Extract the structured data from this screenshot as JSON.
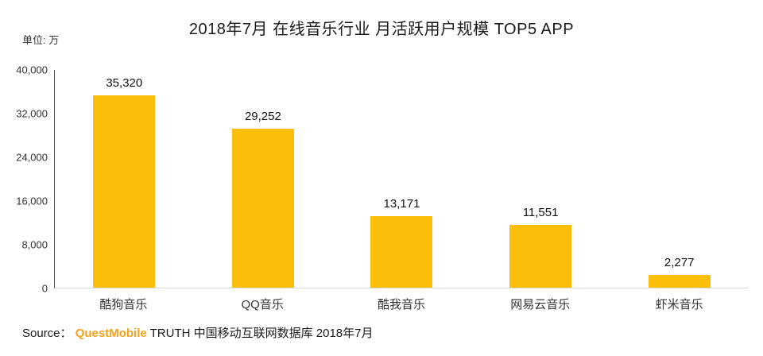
{
  "title": "2018年7月 在线音乐行业 月活跃用户规模 TOP5 APP",
  "unit_label": "单位: 万",
  "source": {
    "prefix": "Source：",
    "brand": "QuestMobile",
    "rest": " TRUTH 中国移动互联网数据库 2018年7月"
  },
  "colors": {
    "bar": "#FBBE0B",
    "brand": "#F7A21B",
    "axis": "#595959"
  },
  "chart_data": {
    "type": "bar",
    "title": "2018年7月 在线音乐行业 月活跃用户规模 TOP5 APP",
    "xlabel": "",
    "ylabel": "单位: 万",
    "categories": [
      "酷狗音乐",
      "QQ音乐",
      "酷我音乐",
      "网易云音乐",
      "虾米音乐"
    ],
    "values": [
      35320,
      29252,
      13171,
      11551,
      2277
    ],
    "value_labels": [
      "35,320",
      "29,252",
      "13,171",
      "11,551",
      "2,277"
    ],
    "ylim": [
      0,
      40000
    ],
    "yticks": [
      0,
      8000,
      16000,
      24000,
      32000,
      40000
    ],
    "ytick_labels": [
      "0",
      "8,000",
      "16,000",
      "24,000",
      "32,000",
      "40,000"
    ],
    "grid": false,
    "legend": "none",
    "bar_color": "#FBBE0B"
  }
}
